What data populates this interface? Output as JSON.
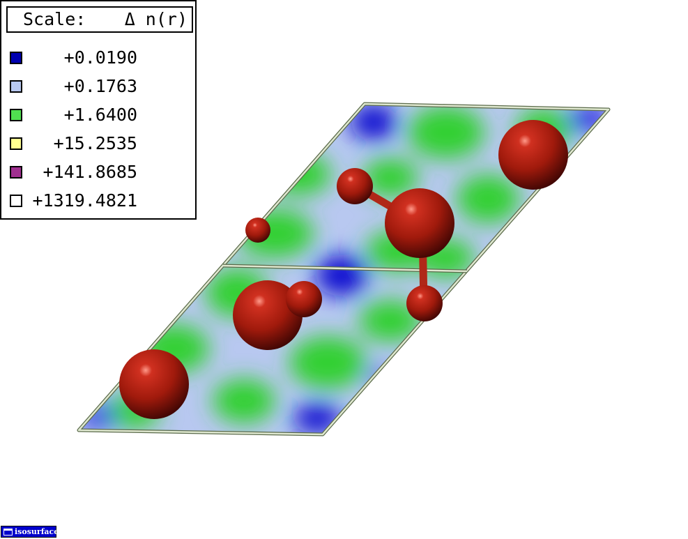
{
  "legend": {
    "header_label": "Scale:",
    "header_quantity": "Δ n(r)",
    "items": [
      {
        "value": "+0.0190",
        "color": "#0000b0"
      },
      {
        "value": "+0.1763",
        "color": "#b8c8f0"
      },
      {
        "value": "+1.6400",
        "color": "#50e050"
      },
      {
        "value": "+15.2535",
        "color": "#ffff90"
      },
      {
        "value": "+141.8685",
        "color": "#a03090"
      },
      {
        "value": "+1319.4821",
        "color": "#ffffff"
      }
    ]
  },
  "colors": {
    "plane_base": "#b8c8f0",
    "green_region": "#30d030",
    "blue_region": "#1010d0",
    "atom": "#a81e10",
    "frame": "#c8d8b8"
  },
  "taskbar": {
    "label": "isosurface",
    "icon": "window-icon"
  }
}
